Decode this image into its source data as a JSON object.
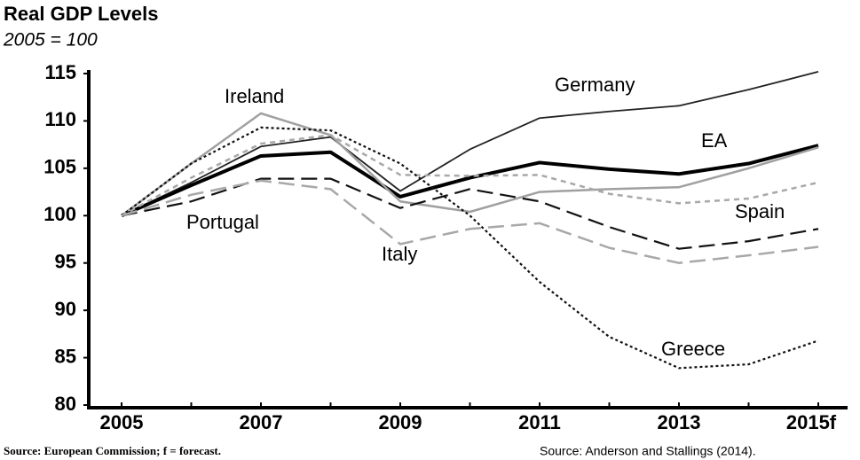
{
  "chart_data": {
    "type": "line",
    "title": "Real GDP Levels",
    "subtitle": "2005 = 100",
    "source_left": "Source: European Commission; f = forecast.",
    "source_right": "Source: Anderson  and Stallings (2014).",
    "categories": [
      "2005",
      null,
      "2007",
      null,
      "2009",
      null,
      "2011",
      null,
      "2013",
      null,
      "2015f"
    ],
    "ylim": [
      80,
      115
    ],
    "yticks": [
      80,
      85,
      90,
      95,
      100,
      105,
      110,
      115
    ],
    "series": [
      {
        "name": "Germany",
        "color": "#222222",
        "line_style": "solid",
        "line_width": 1.8,
        "values": [
          100,
          103.5,
          107.3,
          108.3,
          102.6,
          107,
          110.3,
          111,
          111.6,
          113.3,
          115.2
        ]
      },
      {
        "name": "EA",
        "color": "#000000",
        "line_style": "solid",
        "line_width": 4,
        "values": [
          100,
          103.2,
          106.3,
          106.7,
          102,
          104,
          105.6,
          104.9,
          104.4,
          105.5,
          107.4
        ]
      },
      {
        "name": "Ireland",
        "color": "#a0a0a0",
        "line_style": "solid",
        "line_width": 2.5,
        "values": [
          100,
          105.5,
          110.8,
          108.5,
          101.5,
          100.4,
          102.5,
          102.8,
          103,
          105,
          107.2
        ]
      },
      {
        "name": "Spain",
        "color": "#a8a8a8",
        "line_style": "short-dash",
        "line_width": 2.5,
        "values": [
          100,
          104,
          107.6,
          108.5,
          104.3,
          104.2,
          104.3,
          102.3,
          101.3,
          101.8,
          103.5
        ]
      },
      {
        "name": "Greece",
        "color": "#111111",
        "line_style": "dotted",
        "line_width": 2.2,
        "values": [
          100,
          105.5,
          109.3,
          109,
          105.5,
          100,
          93,
          87.2,
          83.9,
          84.3,
          86.8
        ]
      },
      {
        "name": "Portugal",
        "color": "#111111",
        "line_style": "long-dash",
        "line_width": 2.2,
        "values": [
          100,
          101.5,
          103.9,
          103.9,
          100.8,
          102.8,
          101.5,
          98.8,
          96.5,
          97.3,
          98.6
        ]
      },
      {
        "name": "Italy",
        "color": "#a8a8a8",
        "line_style": "long-dash",
        "line_width": 2.5,
        "values": [
          100,
          102.2,
          103.7,
          102.8,
          97,
          98.6,
          99.2,
          96.6,
          95,
          95.8,
          96.7
        ]
      }
    ]
  }
}
